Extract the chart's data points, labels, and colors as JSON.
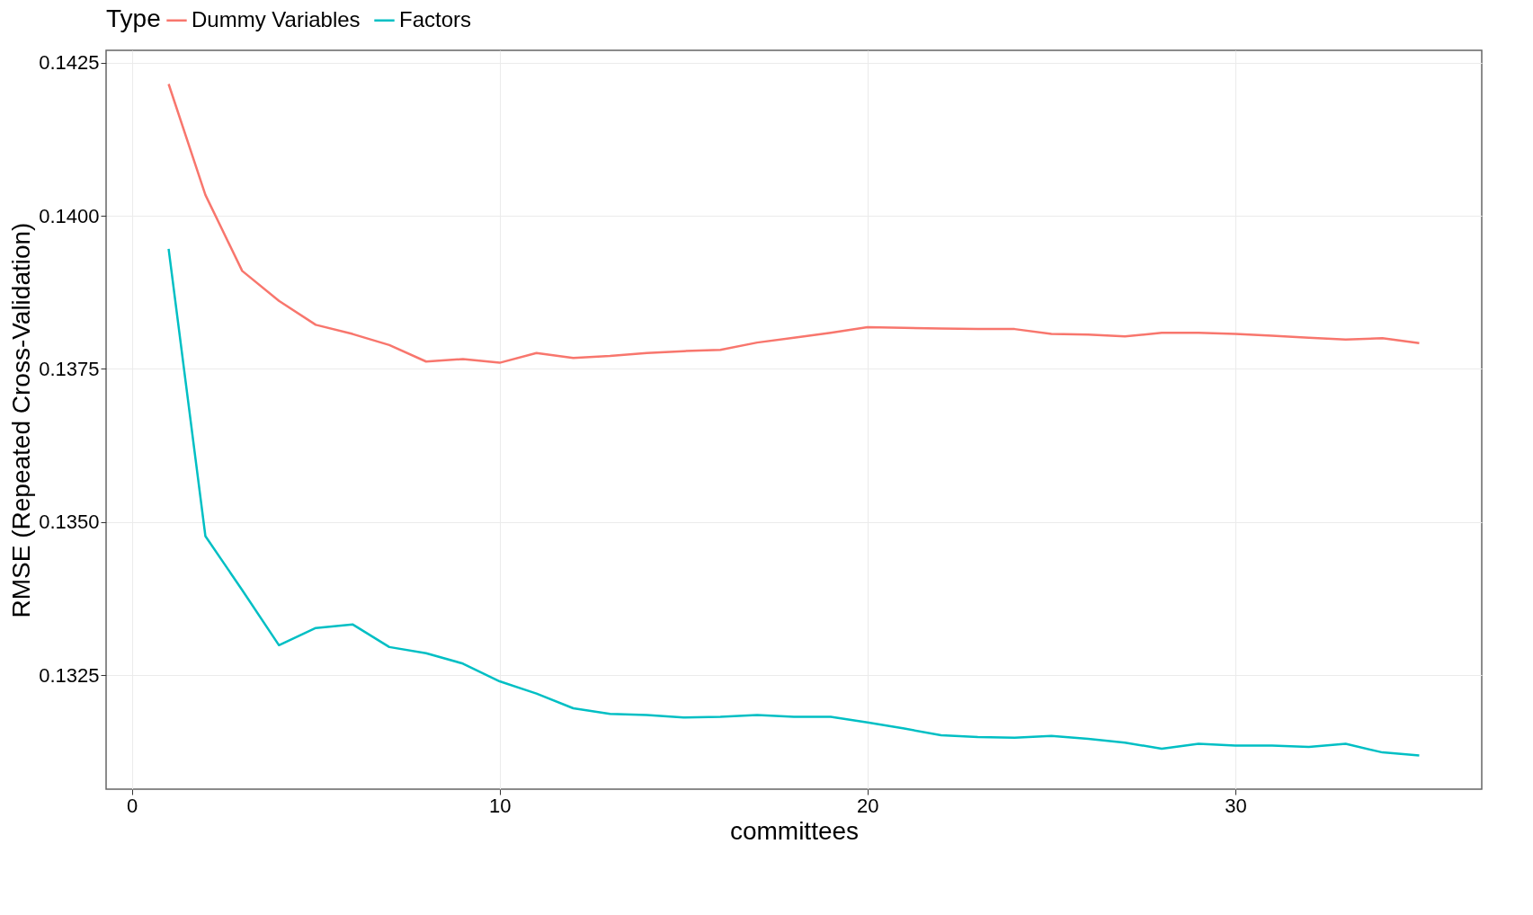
{
  "chart_data": {
    "type": "line",
    "xlabel": "committees",
    "ylabel": "RMSE (Repeated Cross-Validation)",
    "legend_title": "Type",
    "x": [
      1,
      2,
      3,
      4,
      5,
      6,
      7,
      8,
      9,
      10,
      11,
      12,
      13,
      14,
      15,
      16,
      17,
      18,
      19,
      20,
      21,
      22,
      23,
      24,
      25,
      26,
      27,
      28,
      29,
      30,
      31,
      32,
      33,
      34,
      35
    ],
    "series": [
      {
        "name": "Dummy Variables",
        "color": "#f8766d",
        "values": [
          0.14215,
          0.14034,
          0.1391,
          0.13861,
          0.13822,
          0.13807,
          0.13789,
          0.13762,
          0.13766,
          0.1376,
          0.13776,
          0.13768,
          0.13771,
          0.13776,
          0.13779,
          0.13781,
          0.13793,
          0.13801,
          0.13809,
          0.13818,
          0.13817,
          0.13816,
          0.13815,
          0.13815,
          0.13807,
          0.13806,
          0.13803,
          0.13809,
          0.13809,
          0.13807,
          0.13804,
          0.13801,
          0.13798,
          0.138,
          0.13792
        ]
      },
      {
        "name": "Factors",
        "color": "#00bfc4",
        "values": [
          0.13946,
          0.13477,
          0.13389,
          0.13299,
          0.13327,
          0.13333,
          0.13296,
          0.13286,
          0.13269,
          0.1324,
          0.1322,
          0.13196,
          0.13187,
          0.13185,
          0.13181,
          0.13182,
          0.13185,
          0.13182,
          0.13182,
          0.13173,
          0.13163,
          0.13152,
          0.13149,
          0.13148,
          0.13151,
          0.13146,
          0.1314,
          0.1313,
          0.13138,
          0.13135,
          0.13135,
          0.13133,
          0.13138,
          0.13124,
          0.13119
        ]
      }
    ],
    "xlim": [
      -0.7,
      36.7
    ],
    "xticks": [
      0,
      10,
      20,
      30
    ],
    "ylim": [
      0.13064,
      0.1427
    ],
    "yticks": [
      {
        "value": 0.1325,
        "label": "0.1325"
      },
      {
        "value": 0.135,
        "label": "0.1350"
      },
      {
        "value": 0.1375,
        "label": "0.1375"
      },
      {
        "value": 0.14,
        "label": "0.1400"
      },
      {
        "value": 0.1425,
        "label": "0.1425"
      }
    ],
    "grid": true,
    "legend": "top",
    "marker": "none",
    "line_style": "solid"
  }
}
